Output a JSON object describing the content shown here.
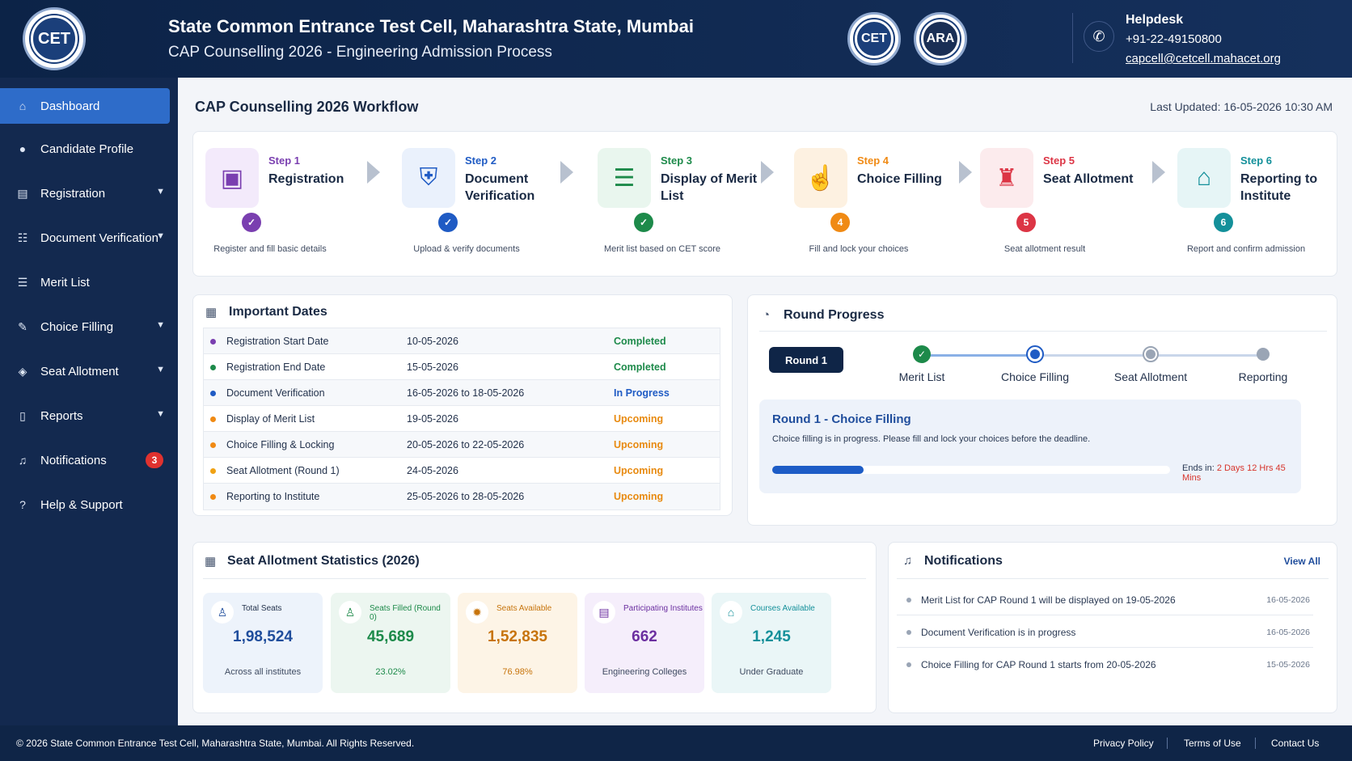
{
  "header": {
    "title": "State Common Entrance Test Cell, Maharashtra State, Mumbai",
    "subtitle": "CAP Counselling 2026 - Engineering Admission Process",
    "logo_text": "CET",
    "logo2_text": "CET",
    "logo3_text": "ARA",
    "helpdesk": {
      "title": "Helpdesk",
      "phone": "+91-22-49150800",
      "email": "capcell@cetcell.mahacet.org"
    }
  },
  "sidebar": {
    "items": [
      {
        "label": "Dashboard",
        "icon": "home-icon"
      },
      {
        "label": "Candidate Profile",
        "icon": "user-icon"
      },
      {
        "label": "Registration",
        "icon": "form-icon"
      },
      {
        "label": "Document Verification",
        "icon": "doc-check-icon"
      },
      {
        "label": "Merit List",
        "icon": "list-icon"
      },
      {
        "label": "Choice Filling",
        "icon": "doc-edit-icon"
      },
      {
        "label": "Seat Allotment",
        "icon": "seat-icon"
      },
      {
        "label": "Reports",
        "icon": "report-icon"
      },
      {
        "label": "Notifications",
        "icon": "bell-icon",
        "badge": "3"
      },
      {
        "label": "Help & Support",
        "icon": "help-icon"
      }
    ]
  },
  "workflow": {
    "title": "CAP Counselling 2026 Workflow",
    "last_updated_label": "Last Updated:",
    "last_updated_value": "16-05-2026 10:30 AM",
    "steps": [
      {
        "num": "Step 1",
        "name": "Registration",
        "desc": "Register and fill basic details",
        "badge": "✓",
        "color": "#7a3fb0"
      },
      {
        "num": "Step 2",
        "name": "Document Verification",
        "desc": "Upload & verify documents",
        "badge": "✓",
        "color": "#1f5bc4"
      },
      {
        "num": "Step 3",
        "name": "Display of Merit List",
        "desc": "Merit list based on CET score",
        "badge": "✓",
        "color": "#1d8a4a"
      },
      {
        "num": "Step 4",
        "name": "Choice Filling",
        "desc": "Fill and lock your choices",
        "badge": "4",
        "color": "#f08a14"
      },
      {
        "num": "Step 5",
        "name": "Seat Allotment",
        "desc": "Seat allotment result",
        "badge": "5",
        "color": "#dc3545"
      },
      {
        "num": "Step 6",
        "name": "Reporting to Institute",
        "desc": "Report and confirm admission",
        "badge": "6",
        "color": "#14909a"
      }
    ]
  },
  "important_dates": {
    "title": "Important Dates",
    "rows": [
      {
        "label": "Registration Start Date",
        "date": "10-05-2026",
        "status": "Completed",
        "dot": "#7a3fb0",
        "status_color": "#1d8a4a"
      },
      {
        "label": "Registration End Date",
        "date": "15-05-2026",
        "status": "Completed",
        "dot": "#1d8a4a",
        "status_color": "#1d8a4a"
      },
      {
        "label": "Document Verification",
        "date": "16-05-2026 to 18-05-2026",
        "status": "In Progress",
        "dot": "#1f5bc4",
        "status_color": "#1f5bc4"
      },
      {
        "label": "Display of Merit List",
        "date": "19-05-2026",
        "status": "Upcoming",
        "dot": "#f08a14",
        "status_color": "#e88a10"
      },
      {
        "label": "Choice Filling & Locking",
        "date": "20-05-2026 to 22-05-2026",
        "status": "Upcoming",
        "dot": "#f08a14",
        "status_color": "#e88a10"
      },
      {
        "label": "Seat Allotment (Round 1)",
        "date": "24-05-2026",
        "status": "Upcoming",
        "dot": "#f0a214",
        "status_color": "#e88a10"
      },
      {
        "label": "Reporting to Institute",
        "date": "25-05-2026 to 28-05-2026",
        "status": "Upcoming",
        "dot": "#f08a14",
        "status_color": "#e88a10"
      }
    ]
  },
  "round_progress": {
    "title": "Round Progress",
    "round_label": "Round 1",
    "stages": [
      "Merit List",
      "Choice Filling",
      "Seat Allotment",
      "Reporting"
    ],
    "current_title": "Round 1 - Choice Filling",
    "current_desc": "Choice filling is in progress. Please fill and lock your choices before the deadline.",
    "progress_fraction": 0.23,
    "ends_label": "Ends in:",
    "ends_value": "2 Days 12 Hrs 45 Mins"
  },
  "stats": {
    "title": "Seat Allotment Statistics (2026)",
    "cards": [
      {
        "label": "Total Seats",
        "value": "1,98,524",
        "sub": "Across all institutes",
        "bg": "#edf3fb",
        "color": "#1f4d9c",
        "icon": "person-icon",
        "glyph": "♙"
      },
      {
        "label": "Seats Filled (Round 0)",
        "value": "45,689",
        "sub": "23.02%",
        "bg": "#ecf6f0",
        "color": "#1d8a4a",
        "icon": "seat-filled-icon",
        "glyph": "♙"
      },
      {
        "label": "Seats Available",
        "value": "1,52,835",
        "sub": "76.98%",
        "bg": "#fdf4e6",
        "color": "#c7740c",
        "icon": "star-icon",
        "glyph": "✹"
      },
      {
        "label": "Participating Institutes",
        "value": "662",
        "sub": "Engineering Colleges",
        "bg": "#f5eefb",
        "color": "#6b2fa0",
        "icon": "clipboard-icon",
        "glyph": "▤"
      },
      {
        "label": "Courses Available",
        "value": "1,245",
        "sub": "Under Graduate",
        "bg": "#eaf6f7",
        "color": "#14909a",
        "icon": "institute-icon",
        "glyph": "⌂"
      }
    ]
  },
  "notifications": {
    "title": "Notifications",
    "view_all": "View All",
    "items": [
      {
        "text": "Merit List for CAP Round 1 will be displayed on 19-05-2026",
        "date": "16-05-2026"
      },
      {
        "text": "Document Verification is in progress",
        "date": "16-05-2026"
      },
      {
        "text": "Choice Filling for CAP Round 1 starts from 20-05-2026",
        "date": "15-05-2026"
      }
    ]
  },
  "footer": {
    "copyright": "© 2026 State Common Entrance Test Cell, Maharashtra State, Mumbai. All Rights Reserved.",
    "links": [
      "Privacy Policy",
      "Terms of Use",
      "Contact Us"
    ]
  }
}
